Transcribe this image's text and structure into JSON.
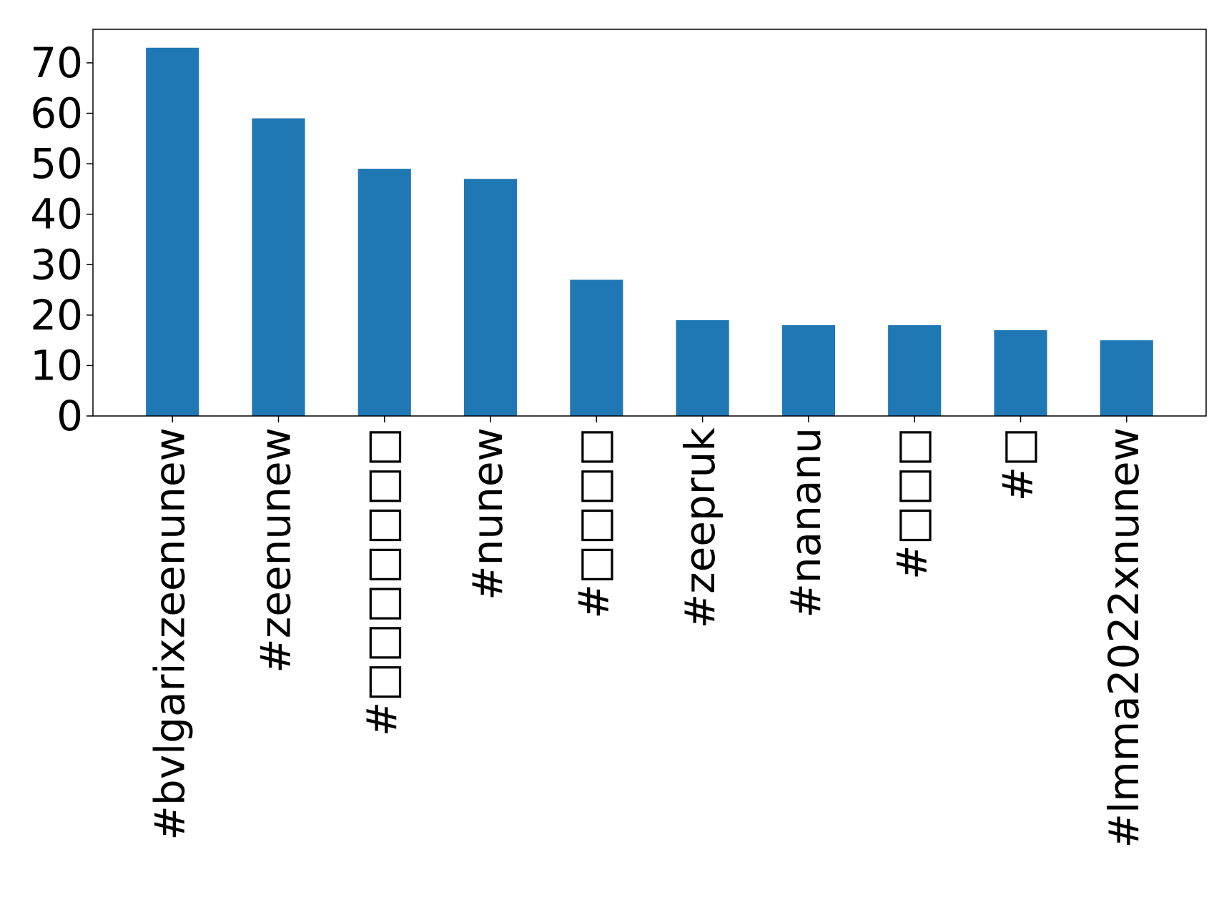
{
  "chart_data": {
    "type": "bar",
    "categories": [
      "#bvlgarixzeenunew",
      "#zeenunew",
      "#□□□□□□□",
      "#nunew",
      "#□□□□",
      "#zeepruk",
      "#nananu",
      "#□□□",
      "#□",
      "#lmma2022xnunew"
    ],
    "values": [
      73,
      59,
      49,
      47,
      27,
      19,
      18,
      18,
      17,
      15
    ],
    "yticks": [
      "0",
      "10",
      "20",
      "30",
      "40",
      "50",
      "60",
      "70"
    ],
    "ylim": [
      0,
      76.65
    ],
    "bar_color": "#1f77b4",
    "grid": false,
    "legend": "none"
  }
}
